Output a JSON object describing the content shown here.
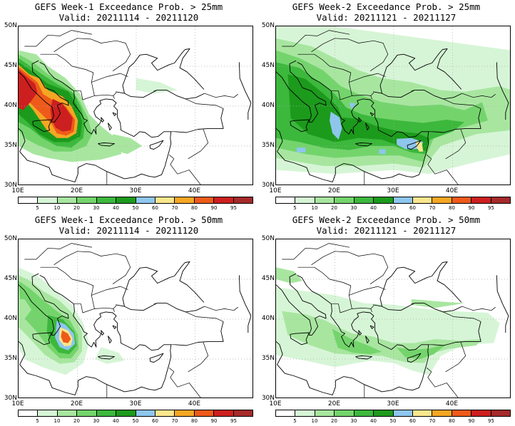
{
  "panels": [
    {
      "title_line1": "GEFS Week-1 Exceedance Prob. > 25mm",
      "title_line2": "Valid: 20211114 - 20211120"
    },
    {
      "title_line1": "GEFS Week-2 Exceedance Prob. > 25mm",
      "title_line2": "Valid: 20211121 - 20211127"
    },
    {
      "title_line1": "GEFS Week-1 Exceedance Prob. > 50mm",
      "title_line2": "Valid: 20211114 - 20211120"
    },
    {
      "title_line1": "GEFS Week-2 Exceedance Prob. > 50mm",
      "title_line2": "Valid: 20211121 - 20211127"
    }
  ],
  "lat_labels": [
    "50N",
    "45N",
    "40N",
    "35N",
    "30N"
  ],
  "lon_labels": [
    "10E",
    "20E",
    "30E",
    "40E"
  ],
  "colorbar": {
    "labels": [
      "5",
      "10",
      "20",
      "30",
      "40",
      "50",
      "60",
      "70",
      "80",
      "90",
      "95"
    ],
    "colors": [
      "#ffffff",
      "#d6f5d6",
      "#a8e6a0",
      "#74d46c",
      "#3cb83c",
      "#1c9a1c",
      "#8ec6ee",
      "#fae68c",
      "#f5a623",
      "#ee5a1a",
      "#cc1f1f",
      "#a52a2a"
    ]
  },
  "palette": {
    "coast": "#000000",
    "grid": "#aaaaaa"
  }
}
